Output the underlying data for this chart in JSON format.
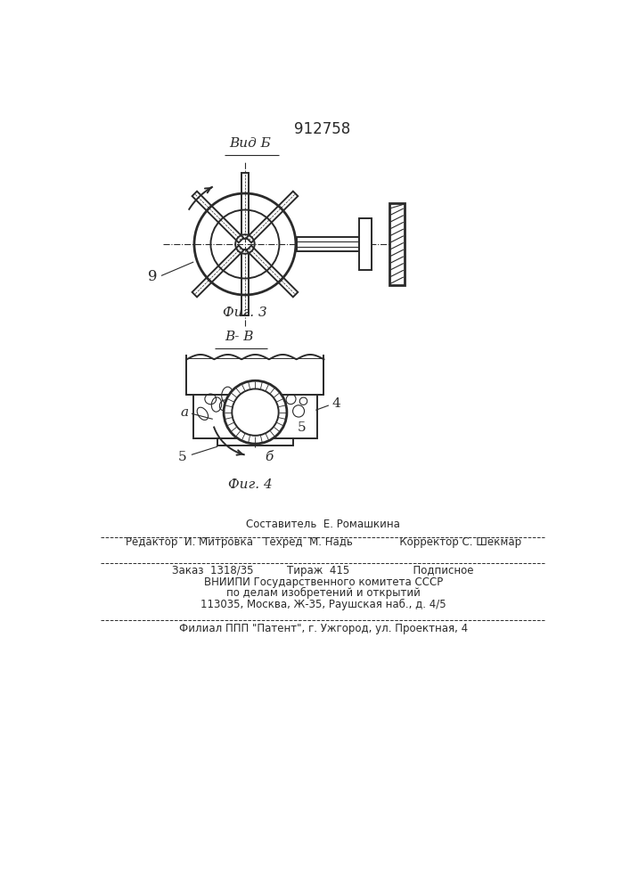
{
  "title_patent": "912758",
  "label_vid_b": "Вид Б",
  "label_fig3": "Фиг. 3",
  "label_vv": "В- В",
  "label_fig4": "Фиг. 4",
  "label_9": "9",
  "label_a": "а",
  "label_4": "4",
  "label_5_right": "5",
  "label_5_left": "5",
  "label_b": "б",
  "bg_color": "#ffffff",
  "line_color": "#2a2a2a",
  "footer_line1": "Составитель  Е. Ромашкина",
  "footer_line2": "Редактор  И. Митровка   Техред  М. Надь              Корректор С. Шекмар",
  "footer_line3": "Заказ  1318/35          Тираж  415                   Подписное",
  "footer_line4": "ВНИИПИ Государственного комитета СССР",
  "footer_line5": "по делам изобретений и открытий",
  "footer_line6": "113035, Москва, Ж-35, Раушская наб., д. 4/5",
  "footer_line7": "Филиал ППП \"Патент\", г. Ужгород, ул. Проектная, 4"
}
